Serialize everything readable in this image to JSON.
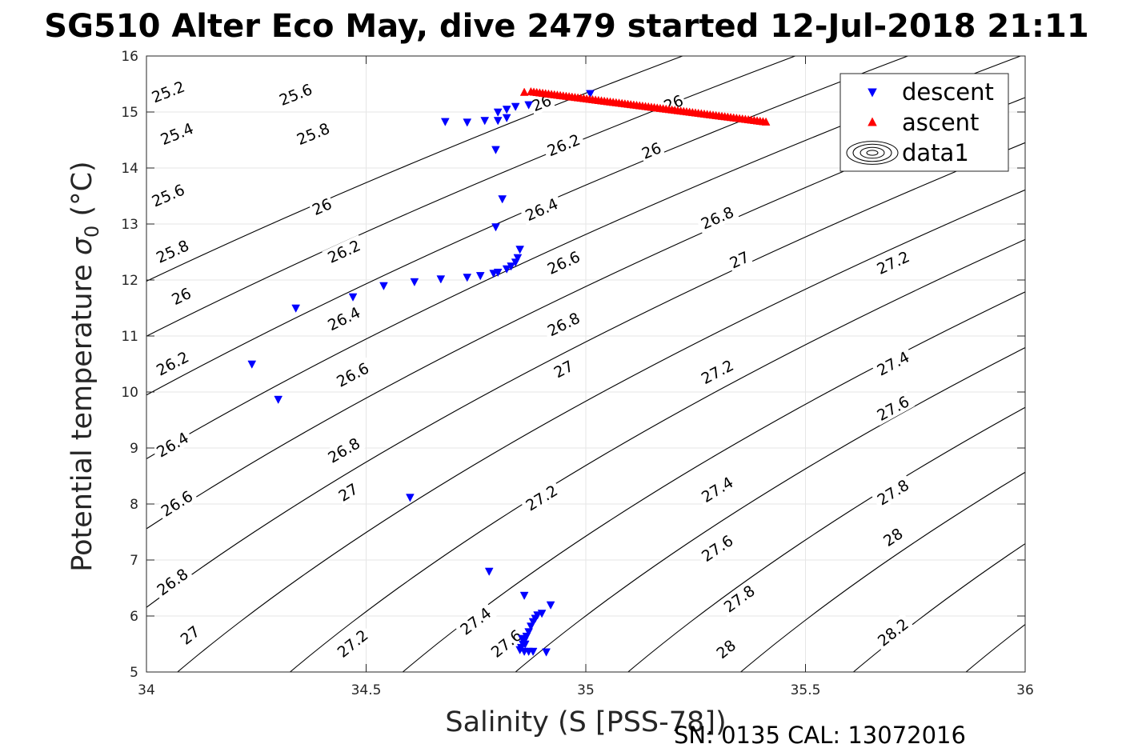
{
  "chart_data": {
    "type": "scatter",
    "title": "SG510 Alter Eco May, dive 2479 started 12-Jul-2018 21:11",
    "xlabel": "Salinity (S [PSS-78])",
    "ylabel_main": "Potential temperature ",
    "ylabel_sigma": "σ",
    "ylabel_sub": "0",
    "ylabel_unit": " (°C)",
    "footer": "SN: 0135  CAL: 13072016",
    "xlim": [
      34,
      36
    ],
    "ylim": [
      5,
      16
    ],
    "xticks": [
      "34",
      "34.5",
      "35",
      "35.5",
      "36"
    ],
    "xtick_values": [
      34,
      34.5,
      35,
      35.5,
      36
    ],
    "yticks": [
      "5",
      "6",
      "7",
      "8",
      "9",
      "10",
      "11",
      "12",
      "13",
      "14",
      "15",
      "16"
    ],
    "ytick_values": [
      5,
      6,
      7,
      8,
      9,
      10,
      11,
      12,
      13,
      14,
      15,
      16
    ],
    "grid": true,
    "legend_position": "top-right",
    "legend": [
      "descent",
      "ascent",
      "data1"
    ],
    "contour_levels": [
      25.2,
      25.4,
      25.6,
      25.8,
      26,
      26.2,
      26.4,
      26.6,
      26.8,
      27,
      27.2,
      27.4,
      27.6,
      27.8,
      28,
      28.2
    ],
    "contour_labels": [
      {
        "text": "25.2",
        "s": 34.05,
        "t": 15.35
      },
      {
        "text": "25.4",
        "s": 34.07,
        "t": 14.6
      },
      {
        "text": "25.6",
        "s": 34.05,
        "t": 13.5
      },
      {
        "text": "25.8",
        "s": 34.06,
        "t": 12.5
      },
      {
        "text": "26",
        "s": 34.08,
        "t": 11.7
      },
      {
        "text": "26.2",
        "s": 34.06,
        "t": 10.5
      },
      {
        "text": "26.4",
        "s": 34.06,
        "t": 9.05
      },
      {
        "text": "26.6",
        "s": 34.07,
        "t": 8
      },
      {
        "text": "26.8",
        "s": 34.06,
        "t": 6.6
      },
      {
        "text": "27",
        "s": 34.1,
        "t": 5.65
      },
      {
        "text": "25.6",
        "s": 34.34,
        "t": 15.3
      },
      {
        "text": "25.8",
        "s": 34.38,
        "t": 14.6
      },
      {
        "text": "26",
        "s": 34.4,
        "t": 13.3
      },
      {
        "text": "26.2",
        "s": 34.45,
        "t": 12.5
      },
      {
        "text": "26.4",
        "s": 34.45,
        "t": 11.3
      },
      {
        "text": "26.6",
        "s": 34.47,
        "t": 10.3
      },
      {
        "text": "26.8",
        "s": 34.45,
        "t": 8.95
      },
      {
        "text": "27",
        "s": 34.46,
        "t": 8.2
      },
      {
        "text": "27.2",
        "s": 34.47,
        "t": 5.5
      },
      {
        "text": "26",
        "s": 34.9,
        "t": 15.15
      },
      {
        "text": "26.2",
        "s": 34.95,
        "t": 14.4
      },
      {
        "text": "26.4",
        "s": 34.9,
        "t": 13.25
      },
      {
        "text": "26.6",
        "s": 34.95,
        "t": 12.3
      },
      {
        "text": "26.8",
        "s": 34.95,
        "t": 11.2
      },
      {
        "text": "27",
        "s": 34.95,
        "t": 10.4
      },
      {
        "text": "27.2",
        "s": 34.9,
        "t": 8.1
      },
      {
        "text": "27.4",
        "s": 34.75,
        "t": 5.9
      },
      {
        "text": "27.6",
        "s": 34.82,
        "t": 5.5
      },
      {
        "text": "26",
        "s": 35.2,
        "t": 15.15
      },
      {
        "text": "26",
        "s": 35.15,
        "t": 14.3
      },
      {
        "text": "26.8",
        "s": 35.3,
        "t": 13.1
      },
      {
        "text": "27",
        "s": 35.35,
        "t": 12.35
      },
      {
        "text": "27.2",
        "s": 35.3,
        "t": 10.35
      },
      {
        "text": "27.4",
        "s": 35.3,
        "t": 8.25
      },
      {
        "text": "27.6",
        "s": 35.3,
        "t": 7.2
      },
      {
        "text": "27.8",
        "s": 35.35,
        "t": 6.3
      },
      {
        "text": "28",
        "s": 35.32,
        "t": 5.4
      },
      {
        "text": "27.2",
        "s": 35.7,
        "t": 12.3
      },
      {
        "text": "27.4",
        "s": 35.7,
        "t": 10.5
      },
      {
        "text": "27.6",
        "s": 35.7,
        "t": 9.7
      },
      {
        "text": "27.8",
        "s": 35.7,
        "t": 8.2
      },
      {
        "text": "28",
        "s": 35.7,
        "t": 7.4
      },
      {
        "text": "28.2",
        "s": 35.7,
        "t": 5.7
      }
    ],
    "series": [
      {
        "name": "descent",
        "marker": "triangle-down",
        "color": "#0000ff",
        "points": [
          [
            34.24,
            10.5
          ],
          [
            34.3,
            9.87
          ],
          [
            34.34,
            11.5
          ],
          [
            34.47,
            11.7
          ],
          [
            34.54,
            11.9
          ],
          [
            34.61,
            11.97
          ],
          [
            34.6,
            8.12
          ],
          [
            34.67,
            12.02
          ],
          [
            34.73,
            12.05
          ],
          [
            34.76,
            12.08
          ],
          [
            34.79,
            12.12
          ],
          [
            34.8,
            12.14
          ],
          [
            34.82,
            12.2
          ],
          [
            34.83,
            12.25
          ],
          [
            34.84,
            12.32
          ],
          [
            34.845,
            12.4
          ],
          [
            34.85,
            12.55
          ],
          [
            34.795,
            12.95
          ],
          [
            34.81,
            13.45
          ],
          [
            34.795,
            14.33
          ],
          [
            34.68,
            14.83
          ],
          [
            34.73,
            14.82
          ],
          [
            34.77,
            14.85
          ],
          [
            34.8,
            14.85
          ],
          [
            34.82,
            14.9
          ],
          [
            34.8,
            15.0
          ],
          [
            34.82,
            15.05
          ],
          [
            34.84,
            15.1
          ],
          [
            34.87,
            15.13
          ],
          [
            35.01,
            15.33
          ],
          [
            34.78,
            6.8
          ],
          [
            34.86,
            6.37
          ],
          [
            34.92,
            6.2
          ],
          [
            34.9,
            6.05
          ],
          [
            34.89,
            6.02
          ],
          [
            34.885,
            5.96
          ],
          [
            34.88,
            5.9
          ],
          [
            34.875,
            5.82
          ],
          [
            34.87,
            5.72
          ],
          [
            34.865,
            5.64
          ],
          [
            34.86,
            5.56
          ],
          [
            34.857,
            5.5
          ],
          [
            34.853,
            5.44
          ],
          [
            34.85,
            5.4
          ],
          [
            34.86,
            5.37
          ],
          [
            34.87,
            5.37
          ],
          [
            34.88,
            5.37
          ],
          [
            34.91,
            5.36
          ],
          [
            34.855,
            5.6
          ],
          [
            34.862,
            5.5
          ]
        ]
      },
      {
        "name": "ascent",
        "marker": "triangle-up",
        "color": "#ff0000",
        "points": [
          [
            34.86,
            15.35
          ],
          [
            34.875,
            15.36
          ],
          [
            35.41,
            14.82
          ]
        ]
      }
    ]
  }
}
